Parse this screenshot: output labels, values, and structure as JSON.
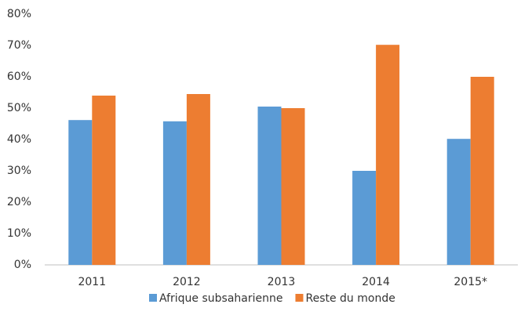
{
  "chart_data": {
    "type": "bar",
    "categories": [
      "2011",
      "2012",
      "2013",
      "2014",
      "2015*"
    ],
    "series": [
      {
        "name": "Afrique subsaharienne",
        "color": "#5b9bd5",
        "values": [
          46.2,
          45.8,
          50.5,
          30,
          40.2
        ]
      },
      {
        "name": "Reste du monde",
        "color": "#ed7d31",
        "values": [
          54,
          54.5,
          50,
          70.2,
          60
        ]
      }
    ],
    "ylim": [
      0,
      80
    ],
    "yticks": [
      {
        "value": 0,
        "label": "0%"
      },
      {
        "value": 10,
        "label": "10%"
      },
      {
        "value": 20,
        "label": "20%"
      },
      {
        "value": 30,
        "label": "30%"
      },
      {
        "value": 40,
        "label": "40%"
      },
      {
        "value": 50,
        "label": "50%"
      },
      {
        "value": 60,
        "label": "60%"
      },
      {
        "value": 70,
        "label": "70%"
      },
      {
        "value": 80,
        "label": "80%"
      }
    ],
    "grid": false,
    "legend": "bottom"
  }
}
